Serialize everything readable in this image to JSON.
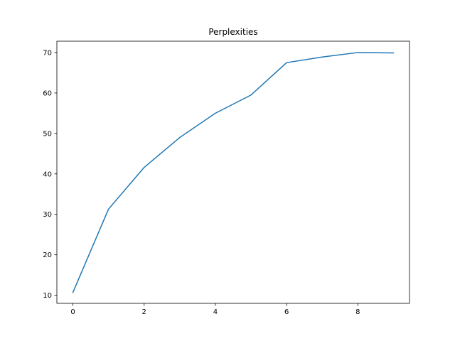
{
  "chart_data": {
    "type": "line",
    "title": "Perplexities",
    "xlabel": "",
    "ylabel": "",
    "xlim": [
      -0.45,
      9.45
    ],
    "ylim": [
      8.0,
      72.8
    ],
    "xticks": [
      0,
      2,
      4,
      6,
      8
    ],
    "yticks": [
      10,
      20,
      30,
      40,
      50,
      60,
      70
    ],
    "grid": false,
    "series": [
      {
        "color": "#1f77b4",
        "x": [
          0,
          1,
          2,
          3,
          4,
          5,
          6,
          7,
          8,
          9
        ],
        "y": [
          10.7,
          31.3,
          41.6,
          49.0,
          55.0,
          59.5,
          67.5,
          68.9,
          70.0,
          69.9
        ]
      }
    ]
  }
}
